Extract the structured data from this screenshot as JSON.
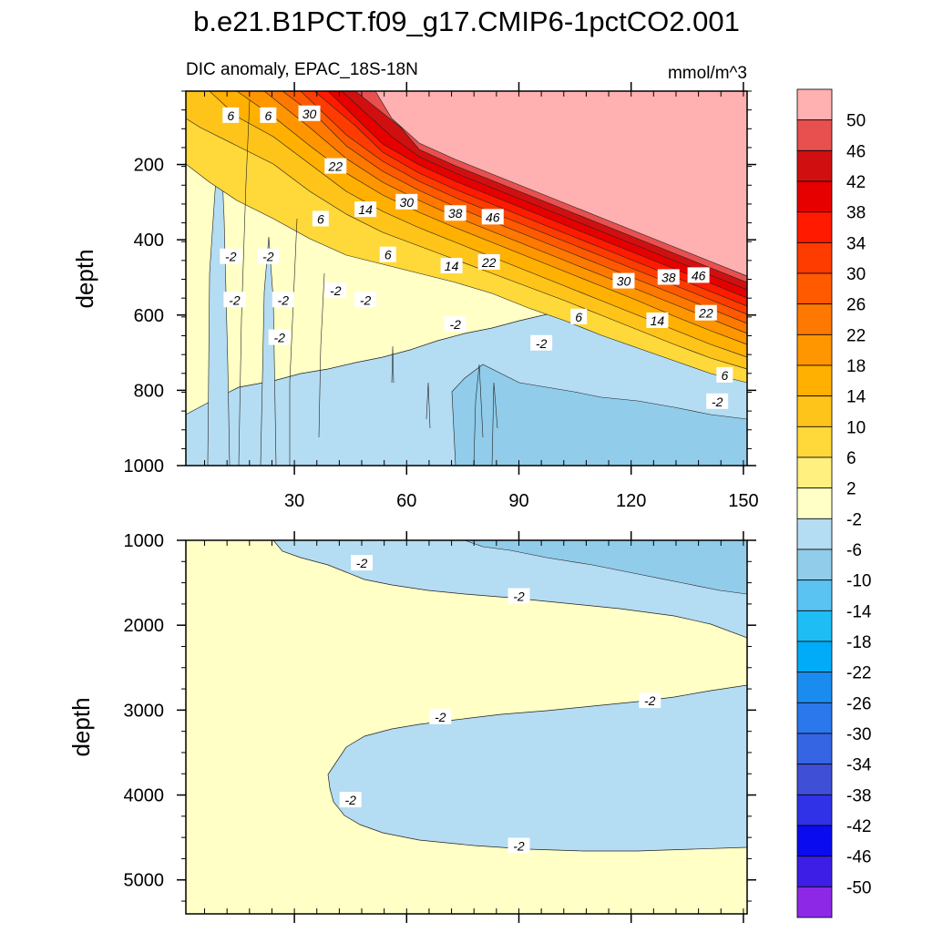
{
  "figure": {
    "title": "b.e21.B1PCT.f09_g17.CMIP6-1pctCO2.001",
    "subtitle_left": "DIC anomaly, EPAC_18S-18N",
    "subtitle_right": "mmol/m^3"
  },
  "chart_data": [
    {
      "type": "heatmap",
      "panel": "upper",
      "title": "DIC anomaly, EPAC_18S-18N",
      "units": "mmol/m^3",
      "xlabel": "",
      "ylabel": "depth",
      "xlim": [
        1,
        151
      ],
      "ylim": [
        1000,
        5
      ],
      "xticks": [
        30,
        60,
        90,
        120,
        150
      ],
      "yticks": [
        200,
        400,
        600,
        800,
        1000
      ],
      "contour_labels": [
        {
          "text": "6",
          "x": 13,
          "depth": 70
        },
        {
          "text": "6",
          "x": 23,
          "depth": 70
        },
        {
          "text": "30",
          "x": 34,
          "depth": 65
        },
        {
          "text": "22",
          "x": 41,
          "depth": 205
        },
        {
          "text": "14",
          "x": 49,
          "depth": 320
        },
        {
          "text": "30",
          "x": 60,
          "depth": 300
        },
        {
          "text": "38",
          "x": 73,
          "depth": 330
        },
        {
          "text": "46",
          "x": 83,
          "depth": 340
        },
        {
          "text": "6",
          "x": 37,
          "depth": 345
        },
        {
          "text": "6",
          "x": 55,
          "depth": 440
        },
        {
          "text": "14",
          "x": 72,
          "depth": 470
        },
        {
          "text": "22",
          "x": 82,
          "depth": 460
        },
        {
          "text": "30",
          "x": 118,
          "depth": 510
        },
        {
          "text": "38",
          "x": 130,
          "depth": 500
        },
        {
          "text": "46",
          "x": 138,
          "depth": 495
        },
        {
          "text": "-2",
          "x": 13,
          "depth": 445
        },
        {
          "text": "-2",
          "x": 23,
          "depth": 445
        },
        {
          "text": "-2",
          "x": 14,
          "depth": 560
        },
        {
          "text": "-2",
          "x": 27,
          "depth": 560
        },
        {
          "text": "-2",
          "x": 41,
          "depth": 535
        },
        {
          "text": "-2",
          "x": 49,
          "depth": 560
        },
        {
          "text": "-2",
          "x": 26,
          "depth": 660
        },
        {
          "text": "-2",
          "x": 73,
          "depth": 625
        },
        {
          "text": "6",
          "x": 106,
          "depth": 605
        },
        {
          "text": "14",
          "x": 127,
          "depth": 615
        },
        {
          "text": "22",
          "x": 140,
          "depth": 595
        },
        {
          "text": "-2",
          "x": 96,
          "depth": 675
        },
        {
          "text": "6",
          "x": 145,
          "depth": 760
        },
        {
          "text": "-2",
          "x": 143,
          "depth": 830
        }
      ]
    },
    {
      "type": "heatmap",
      "panel": "lower",
      "xlabel": "",
      "ylabel": "depth",
      "xlim": [
        1,
        151
      ],
      "ylim": [
        5400,
        1000
      ],
      "yticks": [
        1000,
        2000,
        3000,
        4000,
        5000
      ],
      "contour_labels": [
        {
          "text": "-2",
          "x": 48,
          "depth": 1270
        },
        {
          "text": "-2",
          "x": 90,
          "depth": 1660
        },
        {
          "text": "-2",
          "x": 69,
          "depth": 3080
        },
        {
          "text": "-2",
          "x": 125,
          "depth": 2890
        },
        {
          "text": "-2",
          "x": 45,
          "depth": 4060
        },
        {
          "text": "-2",
          "x": 90,
          "depth": 4600
        }
      ]
    }
  ],
  "colorbar": {
    "labels": [
      "50",
      "46",
      "42",
      "38",
      "34",
      "30",
      "26",
      "22",
      "18",
      "14",
      "10",
      "6",
      "2",
      "-2",
      "-6",
      "-10",
      "-14",
      "-18",
      "-22",
      "-26",
      "-30",
      "-34",
      "-38",
      "-42",
      "-46",
      "-50"
    ],
    "colors": [
      "#ffb0b0",
      "#e85050",
      "#d01010",
      "#e60000",
      "#ff1a00",
      "#ff3c00",
      "#ff5a00",
      "#ff7800",
      "#ff9600",
      "#ffb000",
      "#ffc41a",
      "#ffd839",
      "#fff080",
      "#ffffc6",
      "#b4dcf2",
      "#91ccea",
      "#5ac3f2",
      "#1ebef5",
      "#00acf7",
      "#1a8cf0",
      "#2a78eb",
      "#3565e2",
      "#3f50d6",
      "#2f32e6",
      "#0b0bf0",
      "#3c1ee6",
      "#8c28e6"
    ]
  },
  "colors": {
    "pos50": "#ffb0b0",
    "band2": "#ffffc6",
    "neg2": "#b4dcf2",
    "neg6": "#91ccea"
  }
}
